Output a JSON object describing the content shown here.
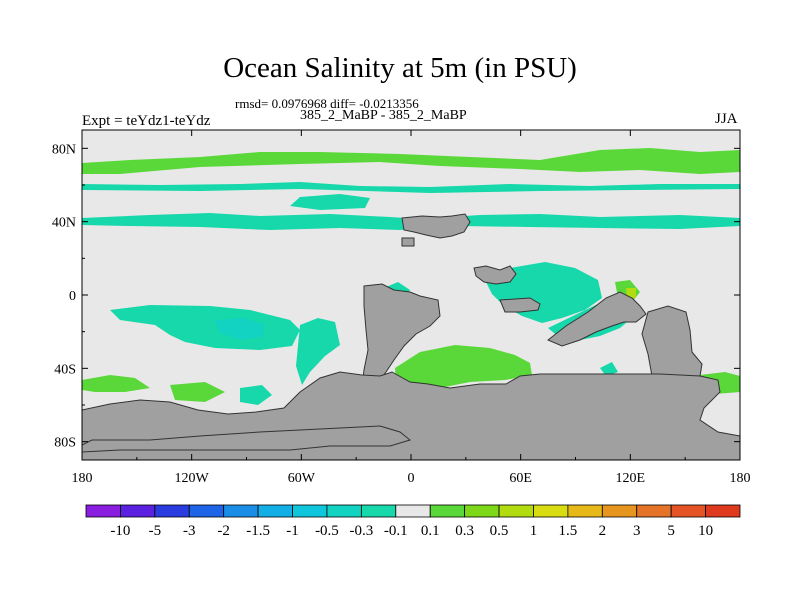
{
  "chart_data": {
    "type": "heatmap",
    "title": "Ocean Salinity at 5m (in PSU)",
    "stats_text": "rmsd= 0.0976968 diff= -0.0213356",
    "case_label": "385_2_MaBP - 385_2_MaBP",
    "left_label": "Expt = teYdz1-teYdz",
    "right_label": "JJA",
    "x_range": [
      -180,
      180
    ],
    "y_range": [
      -90,
      90
    ],
    "x_ticks": [
      "180",
      "120W",
      "60W",
      "0",
      "60E",
      "120E",
      "180"
    ],
    "y_ticks": [
      "80N",
      "40N",
      "0",
      "40S",
      "80S"
    ],
    "colorbar": {
      "labels": [
        "-10",
        "-5",
        "-3",
        "-2",
        "-1.5",
        "-1",
        "-0.5",
        "-0.3",
        "-0.1",
        "0.1",
        "0.3",
        "0.5",
        "1",
        "1.5",
        "2",
        "3",
        "5",
        "10"
      ],
      "colors": [
        "#8a1ee0",
        "#5a22e0",
        "#2a3ce0",
        "#1e64e6",
        "#1a8ee6",
        "#12aee6",
        "#10c6dc",
        "#12d2c2",
        "#16d8aa",
        "#e8e8e8",
        "#5ad83a",
        "#7cd818",
        "#b2dc10",
        "#d8dc10",
        "#e6b818",
        "#e6961e",
        "#e67428",
        "#e45424",
        "#e03a1e"
      ]
    },
    "colors": {
      "land": "#a0a0a0",
      "neutral": "#e8e8e8"
    }
  }
}
